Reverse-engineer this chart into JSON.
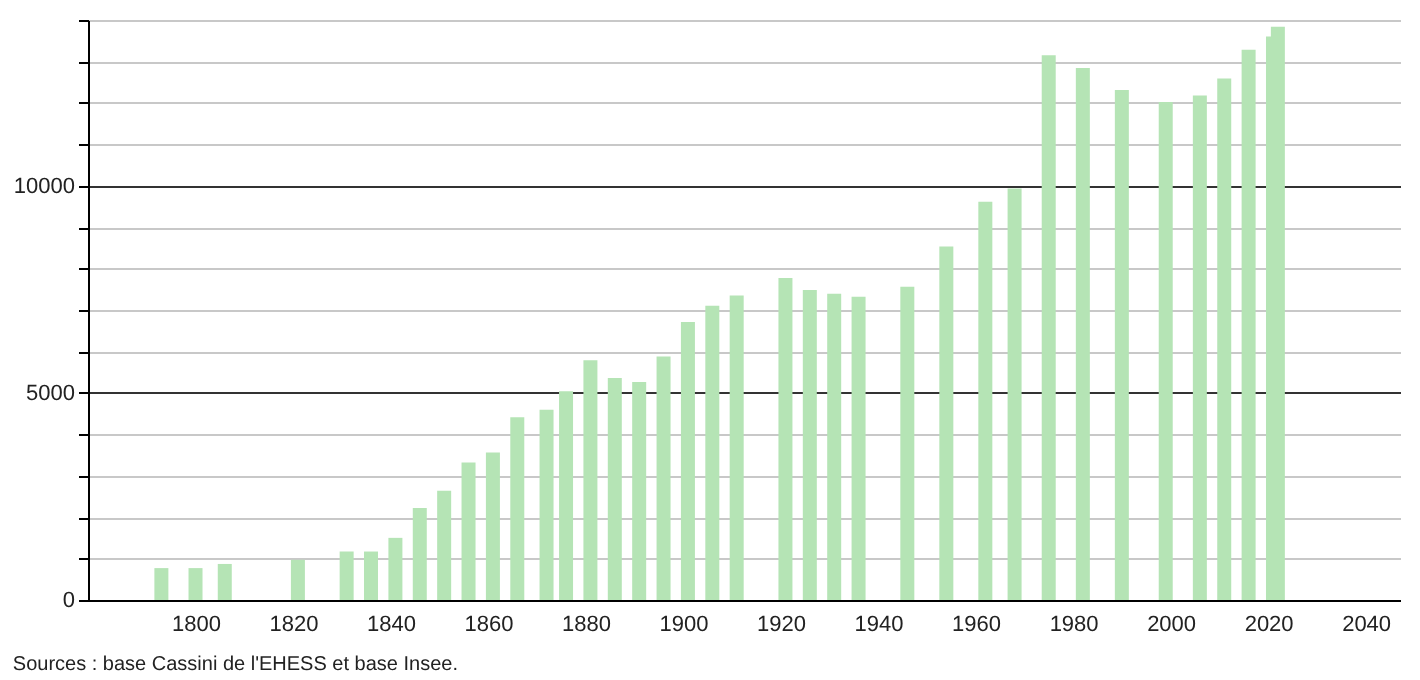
{
  "chart_data": {
    "type": "bar",
    "x": [
      1793,
      1800,
      1806,
      1821,
      1831,
      1836,
      1841,
      1846,
      1851,
      1856,
      1861,
      1866,
      1872,
      1876,
      1881,
      1886,
      1891,
      1896,
      1901,
      1906,
      1911,
      1921,
      1926,
      1931,
      1936,
      1946,
      1954,
      1962,
      1968,
      1975,
      1982,
      1990,
      1999,
      2006,
      2011,
      2016,
      2021,
      2022
    ],
    "values": [
      770,
      770,
      870,
      970,
      1170,
      1170,
      1500,
      2220,
      2640,
      3320,
      3560,
      4410,
      4590,
      5040,
      5790,
      5360,
      5260,
      5880,
      6710,
      7100,
      7350,
      7770,
      7480,
      7390,
      7320,
      7560,
      8530,
      9610,
      9930,
      13150,
      12840,
      12310,
      12020,
      12180,
      12590,
      13280,
      13600,
      13840
    ],
    "color": "#b5e4b5",
    "xlim": [
      1780,
      2045
    ],
    "xticks": [
      1800,
      1820,
      1840,
      1860,
      1880,
      1900,
      1920,
      1940,
      1960,
      1980,
      2000,
      2020,
      2040
    ],
    "ylim": [
      0,
      14000
    ],
    "yticks": [
      0,
      {
        "value": 1000,
        "label": null
      },
      {
        "value": 2000,
        "label": null
      },
      {
        "value": 3000,
        "label": null
      },
      {
        "value": 4000,
        "label": null
      },
      5000,
      {
        "value": 6000,
        "label": null
      },
      {
        "value": 7000,
        "label": null
      },
      {
        "value": 8000,
        "label": null
      },
      {
        "value": 9000,
        "label": null
      },
      10000,
      {
        "value": 11000,
        "label": null
      },
      {
        "value": 12000,
        "label": null
      },
      {
        "value": 13000,
        "label": null
      },
      {
        "value": 14000,
        "label": null
      }
    ],
    "grid": "y",
    "annotations": [
      "Sources : base Cassini de l'EHESS et base Insee."
    ]
  }
}
